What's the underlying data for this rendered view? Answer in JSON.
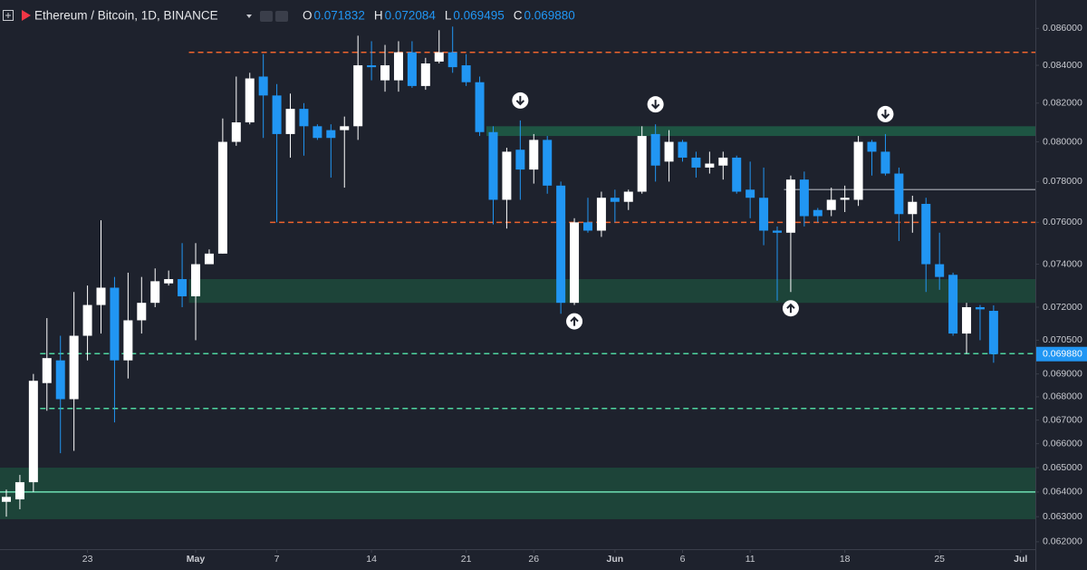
{
  "chart_data": {
    "type": "candlestick",
    "header": {
      "symbol": "Ethereum / Bitcoin, 1D, BINANCE",
      "ohlc": [
        {
          "key": "O",
          "value": "0.071832"
        },
        {
          "key": "H",
          "value": "0.072084"
        },
        {
          "key": "L",
          "value": "0.069495"
        },
        {
          "key": "C",
          "value": "0.069880"
        }
      ]
    },
    "x": [
      "04-17",
      "04-18",
      "04-19",
      "04-20",
      "04-21",
      "04-22",
      "04-23",
      "04-24",
      "04-25",
      "04-26",
      "04-27",
      "04-28",
      "04-29",
      "04-30",
      "05-01",
      "05-02",
      "05-03",
      "05-04",
      "05-05",
      "05-06",
      "05-07",
      "05-08",
      "05-09",
      "05-10",
      "05-11",
      "05-12",
      "05-13",
      "05-14",
      "05-15",
      "05-16",
      "05-17",
      "05-18",
      "05-19",
      "05-20",
      "05-21",
      "05-22",
      "05-23",
      "05-24",
      "05-25",
      "05-26",
      "05-27",
      "05-28",
      "05-29",
      "05-30",
      "05-31",
      "06-01",
      "06-02",
      "06-03",
      "06-04",
      "06-05",
      "06-06",
      "06-07",
      "06-08",
      "06-09",
      "06-10",
      "06-11",
      "06-12",
      "06-13",
      "06-14",
      "06-15",
      "06-16",
      "06-17",
      "06-18",
      "06-19",
      "06-20",
      "06-21",
      "06-22",
      "06-23",
      "06-24",
      "06-25",
      "06-26",
      "06-27",
      "06-28",
      "06-29"
    ],
    "open": [
      0.0636,
      0.0637,
      0.0644,
      0.0686,
      0.0696,
      0.0679,
      0.0707,
      0.0721,
      0.0729,
      0.0696,
      0.0714,
      0.0722,
      0.0731,
      0.0733,
      0.0725,
      0.074,
      0.0745,
      0.08,
      0.081,
      0.0834,
      0.0824,
      0.0804,
      0.0817,
      0.0808,
      0.0806,
      0.0806,
      0.0808,
      0.084,
      0.0832,
      0.0832,
      0.0847,
      0.0829,
      0.0842,
      0.0847,
      0.084,
      0.0831,
      0.0805,
      0.0771,
      0.0796,
      0.0786,
      0.0801,
      0.0778,
      0.0722,
      0.076,
      0.0756,
      0.0772,
      0.077,
      0.0775,
      0.0804,
      0.079,
      0.08,
      0.0792,
      0.0787,
      0.0788,
      0.0792,
      0.0776,
      0.0772,
      0.0756,
      0.0755,
      0.0781,
      0.0766,
      0.0766,
      0.0771,
      0.0771,
      0.08,
      0.0795,
      0.0784,
      0.0764,
      0.0769,
      0.074,
      0.0735,
      0.0708,
      0.072,
      0.071832
    ],
    "high": [
      0.0641,
      0.0647,
      0.069,
      0.0715,
      0.0707,
      0.0727,
      0.073,
      0.0761,
      0.0734,
      0.0736,
      0.0734,
      0.0738,
      0.0737,
      0.075,
      0.075,
      0.0747,
      0.0812,
      0.0834,
      0.0836,
      0.0846,
      0.083,
      0.0825,
      0.082,
      0.0809,
      0.0809,
      0.0813,
      0.0856,
      0.0853,
      0.0851,
      0.0853,
      0.0853,
      0.0844,
      0.0859,
      0.0861,
      0.0846,
      0.0834,
      0.0808,
      0.0797,
      0.0811,
      0.0804,
      0.0803,
      0.078,
      0.0762,
      0.0772,
      0.0775,
      0.0776,
      0.0776,
      0.0808,
      0.0809,
      0.0806,
      0.0801,
      0.0795,
      0.0795,
      0.0795,
      0.0793,
      0.079,
      0.0787,
      0.0758,
      0.0783,
      0.0785,
      0.0767,
      0.0777,
      0.0778,
      0.0803,
      0.0801,
      0.0804,
      0.0787,
      0.0773,
      0.0772,
      0.0755,
      0.0736,
      0.0722,
      0.0721,
      0.072084
    ],
    "low": [
      0.063,
      0.0633,
      0.064,
      0.0674,
      0.0656,
      0.0657,
      0.0696,
      0.0708,
      0.0669,
      0.0688,
      0.0708,
      0.072,
      0.073,
      0.072,
      0.0705,
      0.074,
      0.0745,
      0.0798,
      0.0809,
      0.0802,
      0.076,
      0.0792,
      0.0793,
      0.0801,
      0.0782,
      0.0777,
      0.0801,
      0.0832,
      0.0826,
      0.0826,
      0.0828,
      0.0827,
      0.0841,
      0.0836,
      0.0829,
      0.0803,
      0.0759,
      0.0757,
      0.0771,
      0.0779,
      0.0774,
      0.0717,
      0.0721,
      0.0755,
      0.0753,
      0.076,
      0.0766,
      0.0774,
      0.078,
      0.078,
      0.079,
      0.0782,
      0.0784,
      0.0781,
      0.0774,
      0.0762,
      0.0749,
      0.0723,
      0.0727,
      0.0758,
      0.076,
      0.0763,
      0.0765,
      0.0768,
      0.0783,
      0.0783,
      0.0751,
      0.0755,
      0.0727,
      0.0728,
      0.0707,
      0.0699,
      0.0705,
      0.069495
    ],
    "close": [
      0.0638,
      0.0644,
      0.0687,
      0.0697,
      0.0679,
      0.0707,
      0.0721,
      0.0729,
      0.0696,
      0.0714,
      0.0722,
      0.0732,
      0.0733,
      0.0725,
      0.074,
      0.0745,
      0.08,
      0.081,
      0.0833,
      0.0824,
      0.0804,
      0.0817,
      0.0808,
      0.0802,
      0.0802,
      0.0808,
      0.084,
      0.0839,
      0.084,
      0.0847,
      0.0829,
      0.0841,
      0.0847,
      0.0839,
      0.0831,
      0.0805,
      0.0771,
      0.0795,
      0.0786,
      0.0801,
      0.0778,
      0.0722,
      0.076,
      0.0756,
      0.0772,
      0.077,
      0.0775,
      0.0803,
      0.0788,
      0.08,
      0.0792,
      0.0787,
      0.0789,
      0.0792,
      0.0775,
      0.0772,
      0.0756,
      0.0755,
      0.0781,
      0.0763,
      0.0763,
      0.0771,
      0.0772,
      0.08,
      0.0795,
      0.0784,
      0.0764,
      0.077,
      0.074,
      0.0734,
      0.0708,
      0.072,
      0.0719,
      0.06988
    ],
    "up_color": "#ffffff",
    "down_color": "#2196f3",
    "log_scale": true,
    "ylim": [
      0.06171,
      0.08757
    ],
    "yticks": [
      {
        "value": 0.062,
        "label": "0.062000"
      },
      {
        "value": 0.063,
        "label": "0.063000"
      },
      {
        "value": 0.064,
        "label": "0.064000"
      },
      {
        "value": 0.065,
        "label": "0.065000"
      },
      {
        "value": 0.066,
        "label": "0.066000"
      },
      {
        "value": 0.067,
        "label": "0.067000"
      },
      {
        "value": 0.068,
        "label": "0.068000"
      },
      {
        "value": 0.069,
        "label": "0.069000"
      },
      {
        "value": 0.0705,
        "label": "0.070500"
      },
      {
        "value": 0.072,
        "label": "0.072000"
      },
      {
        "value": 0.074,
        "label": "0.074000"
      },
      {
        "value": 0.076,
        "label": "0.076000"
      },
      {
        "value": 0.078,
        "label": "0.078000"
      },
      {
        "value": 0.08,
        "label": "0.080000"
      },
      {
        "value": 0.082,
        "label": "0.082000"
      },
      {
        "value": 0.084,
        "label": "0.084000"
      },
      {
        "value": 0.086,
        "label": "0.086000"
      }
    ],
    "xticks": [
      {
        "value": "04-23",
        "label": "23"
      },
      {
        "value": "05-01",
        "label": "May"
      },
      {
        "value": "05-07",
        "label": "7"
      },
      {
        "value": "05-14",
        "label": "14"
      },
      {
        "value": "05-21",
        "label": "21"
      },
      {
        "value": "05-26",
        "label": "26"
      },
      {
        "value": "06-01",
        "label": "Jun"
      },
      {
        "value": "06-06",
        "label": "6"
      },
      {
        "value": "06-11",
        "label": "11"
      },
      {
        "value": "06-18",
        "label": "18"
      },
      {
        "value": "06-25",
        "label": "25"
      },
      {
        "value": "07-01",
        "label": "Jul"
      }
    ],
    "price_label": {
      "value": 0.06988,
      "label": "0.069880",
      "color": "#2196f3"
    },
    "zones": [
      {
        "from": "04-17",
        "low": 0.0629,
        "high": 0.065,
        "color": "#1d4a3c"
      },
      {
        "from": "05-01",
        "low": 0.0722,
        "high": 0.0733,
        "color": "#1d4a3c"
      },
      {
        "from": "05-23",
        "low": 0.0803,
        "high": 0.0808,
        "color": "#1f5e48"
      }
    ],
    "lines": [
      {
        "from": "05-01",
        "value": 0.0847,
        "color": "#f0642d",
        "dashed": true
      },
      {
        "from": "05-07",
        "value": 0.076,
        "color": "#f0642d",
        "dashed": true
      },
      {
        "from": "04-20",
        "value": 0.0699,
        "color": "#4fd6a0",
        "dashed": true
      },
      {
        "from": "04-20",
        "value": 0.0675,
        "color": "#4fd6a0",
        "dashed": true
      },
      {
        "from": "06-14",
        "value": 0.0776,
        "color": "#8a8d96",
        "dashed": false
      },
      {
        "from": "04-17",
        "value": 0.064,
        "color": "#6fe0b4",
        "dashed": false
      }
    ],
    "markers": [
      {
        "at": "05-25",
        "dir": "down"
      },
      {
        "at": "06-04",
        "dir": "down"
      },
      {
        "at": "06-21",
        "dir": "down"
      },
      {
        "at": "05-29",
        "dir": "up"
      },
      {
        "at": "06-14",
        "dir": "up"
      }
    ]
  }
}
